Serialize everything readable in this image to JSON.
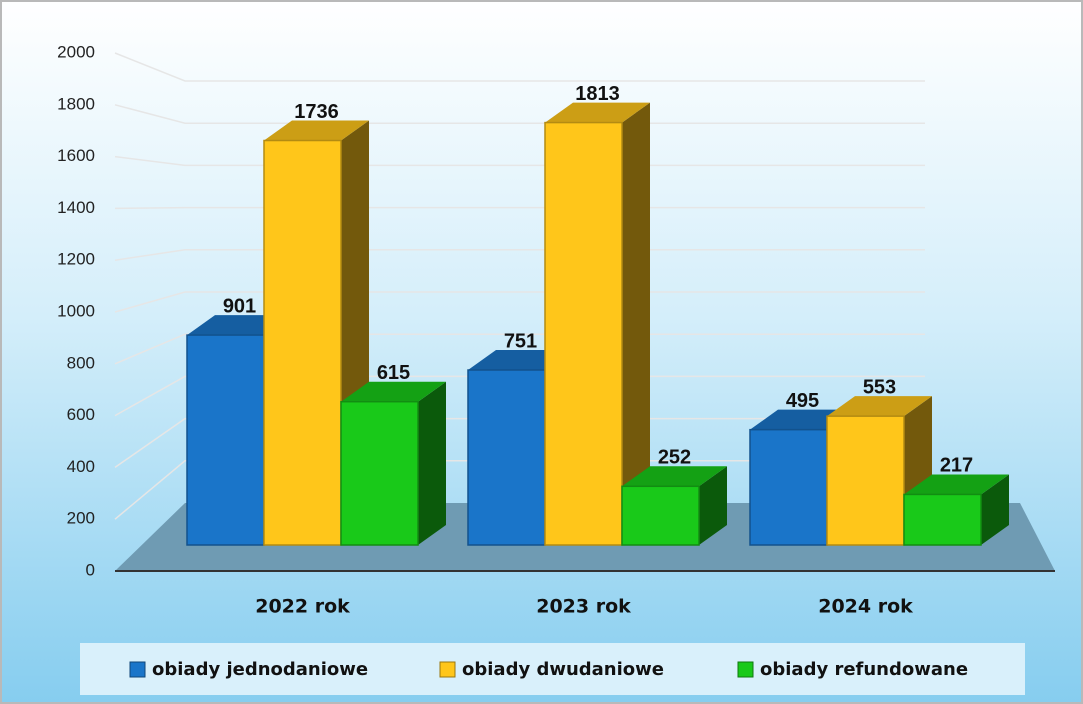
{
  "chart_data": {
    "type": "bar3d",
    "categories": [
      "2022 rok",
      "2023 rok",
      "2024 rok"
    ],
    "series": [
      {
        "name": "obiady jednodaniowe",
        "color": "#1a75c9",
        "values": [
          901,
          751,
          495
        ]
      },
      {
        "name": "obiady dwudaniowe",
        "color": "#ffc61a",
        "values": [
          1736,
          1813,
          553
        ]
      },
      {
        "name": "obiady refundowane",
        "color": "#19c919",
        "values": [
          615,
          252,
          217
        ]
      }
    ],
    "ylim": [
      0,
      2000
    ],
    "yticks": [
      0,
      200,
      400,
      600,
      800,
      1000,
      1200,
      1400,
      1600,
      1800,
      2000
    ],
    "grid": true,
    "legend": "bottom"
  }
}
